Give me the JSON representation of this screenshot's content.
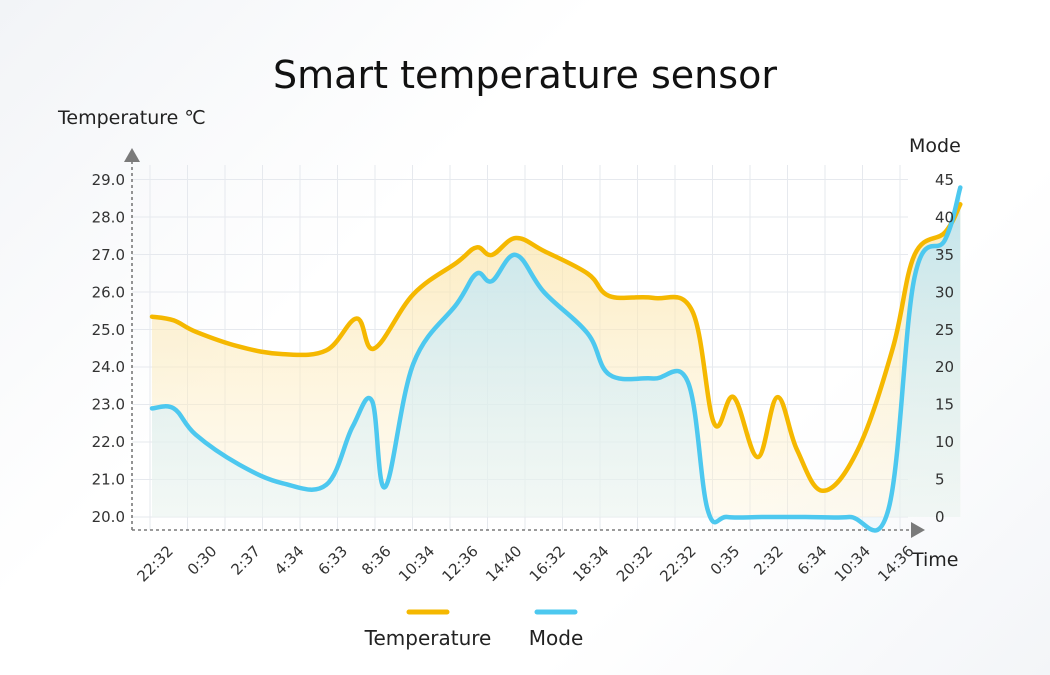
{
  "chart_data": {
    "type": "line",
    "title": "Smart temperature sensor",
    "ylabel": "Temperature ℃",
    "y2label": "Mode",
    "xlabel": "Time",
    "ylim": [
      20.0,
      29.0
    ],
    "y2lim": [
      0,
      45
    ],
    "yticks": [
      "20.0",
      "21.0",
      "22.0",
      "23.0",
      "24.0",
      "25.0",
      "26.0",
      "27.0",
      "28.0",
      "29.0"
    ],
    "y2ticks": [
      "0",
      "5",
      "10",
      "15",
      "20",
      "25",
      "30",
      "35",
      "40",
      "45"
    ],
    "categories": [
      "22:32",
      "0:30",
      "2:37",
      "4:34",
      "6:33",
      "8:36",
      "10:34",
      "12:36",
      "14:40",
      "16:32",
      "18:34",
      "20:32",
      "22:32",
      "0:35",
      "2:32",
      "6:34",
      "10:34",
      "14:36"
    ],
    "grid": true,
    "legend_position": "bottom",
    "series": [
      {
        "name": "Temperature",
        "axis": "left",
        "color": "#f5b800",
        "points": [
          [
            0,
            25.35
          ],
          [
            0.5,
            25.25
          ],
          [
            1,
            24.95
          ],
          [
            2,
            24.55
          ],
          [
            3,
            24.35
          ],
          [
            4,
            24.45
          ],
          [
            4.7,
            25.3
          ],
          [
            5.1,
            24.5
          ],
          [
            6,
            25.95
          ],
          [
            7,
            26.8
          ],
          [
            7.45,
            27.2
          ],
          [
            7.8,
            27.0
          ],
          [
            8.35,
            27.45
          ],
          [
            9,
            27.1
          ],
          [
            10,
            26.5
          ],
          [
            10.5,
            25.9
          ],
          [
            11.5,
            25.85
          ],
          [
            12.4,
            25.5
          ],
          [
            12.9,
            22.5
          ],
          [
            13.35,
            23.2
          ],
          [
            13.9,
            21.6
          ],
          [
            14.35,
            23.2
          ],
          [
            14.8,
            21.8
          ],
          [
            15.4,
            20.7
          ],
          [
            16.2,
            21.8
          ],
          [
            17,
            24.5
          ],
          [
            17.5,
            27.0
          ],
          [
            18.2,
            27.6
          ],
          [
            18.55,
            28.35
          ]
        ]
      },
      {
        "name": "Mode",
        "axis": "right",
        "color": "#4dc8ef",
        "points": [
          [
            0,
            14.5
          ],
          [
            0.5,
            14.5
          ],
          [
            1,
            11
          ],
          [
            2,
            7
          ],
          [
            3,
            4.5
          ],
          [
            4,
            4.3
          ],
          [
            4.6,
            12
          ],
          [
            5.05,
            15.5
          ],
          [
            5.35,
            4
          ],
          [
            6,
            20.5
          ],
          [
            7,
            28.5
          ],
          [
            7.45,
            32.5
          ],
          [
            7.8,
            31.5
          ],
          [
            8.35,
            35
          ],
          [
            9,
            30
          ],
          [
            10,
            24.5
          ],
          [
            10.5,
            19
          ],
          [
            11.5,
            18.5
          ],
          [
            12.3,
            18
          ],
          [
            12.75,
            1
          ],
          [
            13.2,
            0
          ],
          [
            14,
            0
          ],
          [
            15,
            0
          ],
          [
            16,
            0
          ],
          [
            16.9,
            1
          ],
          [
            17.5,
            32
          ],
          [
            18.2,
            37
          ],
          [
            18.55,
            44
          ]
        ]
      }
    ]
  }
}
